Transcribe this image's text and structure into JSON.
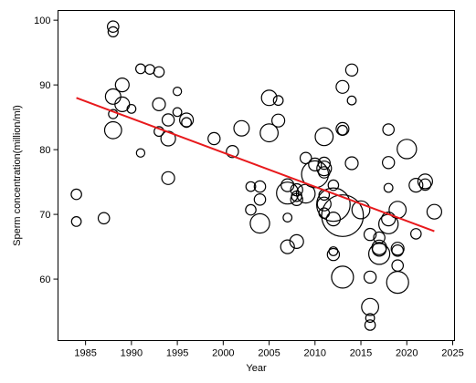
{
  "chart_data": {
    "type": "scatter",
    "title": "",
    "xlabel": "Year",
    "ylabel": "Sperm concentration(million/ml)",
    "xlim": [
      1982,
      2025.2
    ],
    "ylim": [
      50.5,
      101.5
    ],
    "xticks": [
      1985,
      1990,
      1995,
      2000,
      2005,
      2010,
      2015,
      2020,
      2025
    ],
    "yticks": [
      60,
      70,
      80,
      90,
      100
    ],
    "xtick_labels": [
      "1985",
      "1990",
      "1995",
      "2000",
      "2005",
      "2010",
      "2015",
      "2020",
      "2025"
    ],
    "ytick_labels": [
      "60",
      "70",
      "80",
      "90",
      "100"
    ],
    "grid": false,
    "legend": "none",
    "marker_style": "open circle, size proportional to study weight",
    "point_color": "#000000",
    "trend_line": {
      "color": "#e8191c",
      "x": [
        1984,
        2023
      ],
      "y": [
        88.0,
        67.4
      ]
    },
    "points": [
      {
        "x": 1984,
        "y": 73.1,
        "s": 0.3
      },
      {
        "x": 1984,
        "y": 68.9,
        "s": 0.25
      },
      {
        "x": 1987,
        "y": 69.4,
        "s": 0.35
      },
      {
        "x": 1988,
        "y": 99.0,
        "s": 0.35
      },
      {
        "x": 1988,
        "y": 98.2,
        "s": 0.28
      },
      {
        "x": 1988,
        "y": 88.2,
        "s": 0.6
      },
      {
        "x": 1988,
        "y": 85.5,
        "s": 0.22
      },
      {
        "x": 1988,
        "y": 83.0,
        "s": 0.7
      },
      {
        "x": 1989,
        "y": 90.0,
        "s": 0.5
      },
      {
        "x": 1989,
        "y": 87.0,
        "s": 0.55
      },
      {
        "x": 1990,
        "y": 86.3,
        "s": 0.2
      },
      {
        "x": 1991,
        "y": 92.5,
        "s": 0.25
      },
      {
        "x": 1991,
        "y": 79.5,
        "s": 0.18
      },
      {
        "x": 1992,
        "y": 92.4,
        "s": 0.25
      },
      {
        "x": 1993,
        "y": 92.0,
        "s": 0.3
      },
      {
        "x": 1993,
        "y": 87.0,
        "s": 0.45
      },
      {
        "x": 1993,
        "y": 82.8,
        "s": 0.25
      },
      {
        "x": 1994,
        "y": 84.6,
        "s": 0.4
      },
      {
        "x": 1994,
        "y": 81.7,
        "s": 0.55
      },
      {
        "x": 1994,
        "y": 75.6,
        "s": 0.45
      },
      {
        "x": 1995,
        "y": 89.0,
        "s": 0.18
      },
      {
        "x": 1995,
        "y": 85.8,
        "s": 0.2
      },
      {
        "x": 1996,
        "y": 84.6,
        "s": 0.5
      },
      {
        "x": 1996,
        "y": 84.2,
        "s": 0.25
      },
      {
        "x": 1999,
        "y": 81.7,
        "s": 0.4
      },
      {
        "x": 2001,
        "y": 79.7,
        "s": 0.4
      },
      {
        "x": 2002,
        "y": 83.3,
        "s": 0.6
      },
      {
        "x": 2003,
        "y": 74.3,
        "s": 0.25
      },
      {
        "x": 2003,
        "y": 70.7,
        "s": 0.3
      },
      {
        "x": 2004,
        "y": 74.3,
        "s": 0.35
      },
      {
        "x": 2004,
        "y": 72.3,
        "s": 0.35
      },
      {
        "x": 2004,
        "y": 68.6,
        "s": 0.85
      },
      {
        "x": 2005,
        "y": 88.0,
        "s": 0.6
      },
      {
        "x": 2005,
        "y": 82.6,
        "s": 0.75
      },
      {
        "x": 2006,
        "y": 87.6,
        "s": 0.25
      },
      {
        "x": 2006,
        "y": 84.5,
        "s": 0.45
      },
      {
        "x": 2007,
        "y": 74.5,
        "s": 0.45
      },
      {
        "x": 2007,
        "y": 73.3,
        "s": 1.0
      },
      {
        "x": 2007,
        "y": 69.5,
        "s": 0.2
      },
      {
        "x": 2007,
        "y": 65.0,
        "s": 0.5
      },
      {
        "x": 2008,
        "y": 73.8,
        "s": 0.4
      },
      {
        "x": 2008,
        "y": 72.8,
        "s": 0.3
      },
      {
        "x": 2008,
        "y": 72.3,
        "s": 0.4
      },
      {
        "x": 2008,
        "y": 65.8,
        "s": 0.5
      },
      {
        "x": 2009,
        "y": 78.7,
        "s": 0.35
      },
      {
        "x": 2009,
        "y": 73.2,
        "s": 0.8
      },
      {
        "x": 2010,
        "y": 77.7,
        "s": 0.45
      },
      {
        "x": 2010,
        "y": 76.2,
        "s": 1.3
      },
      {
        "x": 2011,
        "y": 82.0,
        "s": 0.75
      },
      {
        "x": 2011,
        "y": 77.9,
        "s": 0.4
      },
      {
        "x": 2011,
        "y": 77.1,
        "s": 0.55
      },
      {
        "x": 2011,
        "y": 76.5,
        "s": 0.35
      },
      {
        "x": 2011,
        "y": 73.0,
        "s": 0.3
      },
      {
        "x": 2011,
        "y": 71.6,
        "s": 0.5
      },
      {
        "x": 2011,
        "y": 70.2,
        "s": 0.3
      },
      {
        "x": 2012,
        "y": 74.5,
        "s": 0.3
      },
      {
        "x": 2012,
        "y": 71.5,
        "s": 1.7
      },
      {
        "x": 2012,
        "y": 69.3,
        "s": 0.5
      },
      {
        "x": 2012,
        "y": 63.8,
        "s": 0.4
      },
      {
        "x": 2012,
        "y": 64.3,
        "s": 0.2
      },
      {
        "x": 2013,
        "y": 89.7,
        "s": 0.45
      },
      {
        "x": 2013,
        "y": 83.2,
        "s": 0.45
      },
      {
        "x": 2013,
        "y": 83.0,
        "s": 0.25
      },
      {
        "x": 2013,
        "y": 69.8,
        "s": 2.2
      },
      {
        "x": 2013,
        "y": 60.3,
        "s": 1.0
      },
      {
        "x": 2014,
        "y": 92.3,
        "s": 0.4
      },
      {
        "x": 2014,
        "y": 87.6,
        "s": 0.2
      },
      {
        "x": 2014,
        "y": 77.9,
        "s": 0.45
      },
      {
        "x": 2015,
        "y": 70.7,
        "s": 0.75
      },
      {
        "x": 2016,
        "y": 66.9,
        "s": 0.4
      },
      {
        "x": 2016,
        "y": 60.3,
        "s": 0.4
      },
      {
        "x": 2016,
        "y": 55.7,
        "s": 0.7
      },
      {
        "x": 2016,
        "y": 54.0,
        "s": 0.2
      },
      {
        "x": 2016,
        "y": 52.9,
        "s": 0.3
      },
      {
        "x": 2017,
        "y": 66.4,
        "s": 0.35
      },
      {
        "x": 2017,
        "y": 64.9,
        "s": 0.55
      },
      {
        "x": 2017,
        "y": 64.6,
        "s": 0.5
      },
      {
        "x": 2017,
        "y": 63.9,
        "s": 0.95
      },
      {
        "x": 2018,
        "y": 83.1,
        "s": 0.35
      },
      {
        "x": 2018,
        "y": 78.0,
        "s": 0.4
      },
      {
        "x": 2018,
        "y": 74.1,
        "s": 0.2
      },
      {
        "x": 2018,
        "y": 69.3,
        "s": 0.5
      },
      {
        "x": 2018,
        "y": 68.5,
        "s": 0.85
      },
      {
        "x": 2019,
        "y": 70.7,
        "s": 0.7
      },
      {
        "x": 2019,
        "y": 64.7,
        "s": 0.45
      },
      {
        "x": 2019,
        "y": 64.4,
        "s": 0.35
      },
      {
        "x": 2019,
        "y": 62.1,
        "s": 0.35
      },
      {
        "x": 2019,
        "y": 59.5,
        "s": 1.0
      },
      {
        "x": 2020,
        "y": 80.1,
        "s": 0.85
      },
      {
        "x": 2021,
        "y": 74.5,
        "s": 0.5
      },
      {
        "x": 2021,
        "y": 67.0,
        "s": 0.3
      },
      {
        "x": 2022,
        "y": 75.1,
        "s": 0.55
      },
      {
        "x": 2022,
        "y": 74.6,
        "s": 0.35
      },
      {
        "x": 2023,
        "y": 70.4,
        "s": 0.55
      }
    ]
  }
}
